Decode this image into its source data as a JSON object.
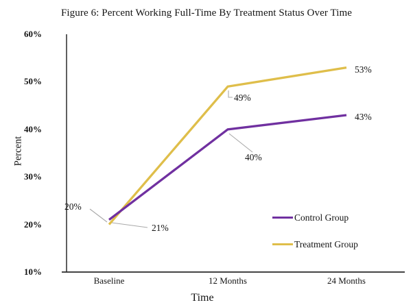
{
  "figure": {
    "title": "Figure 6: Percent Working Full-Time By Treatment Status Over Time"
  },
  "chart_data": {
    "type": "line",
    "title": "Figure 6: Percent Working Full-Time By Treatment Status Over Time",
    "xlabel": "Time",
    "ylabel": "Percent",
    "categories": [
      "Baseline",
      "12 Months",
      "24 Months"
    ],
    "series": [
      {
        "name": "Control Group",
        "color": "#7030A0",
        "values": [
          21,
          40,
          43
        ],
        "point_labels": [
          "21%",
          "40%",
          "43%"
        ]
      },
      {
        "name": "Treatment Group",
        "color": "#DFBE4A",
        "values": [
          20,
          49,
          53
        ],
        "point_labels": [
          "20%",
          "49%",
          "53%"
        ]
      }
    ],
    "ylim": [
      10,
      60
    ],
    "ytick_interval": 10,
    "ytick_labels": [
      "10%",
      "20%",
      "30%",
      "40%",
      "50%",
      "60%"
    ],
    "grid": false,
    "legend_position": "inside-right-middle",
    "leader_line_color": "#A9A9A9",
    "axis_color": "#2A2A2A"
  }
}
